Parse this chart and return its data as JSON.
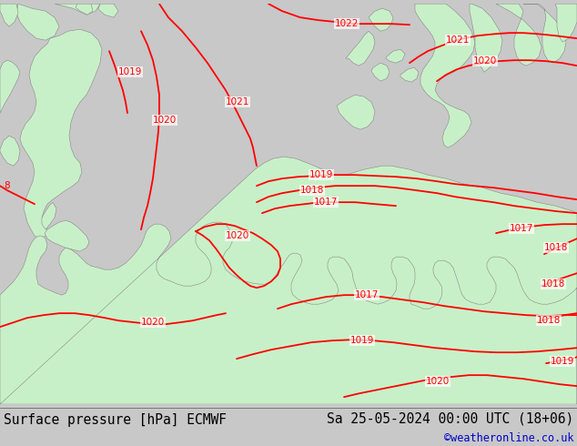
{
  "title_left": "Surface pressure [hPa] ECMWF",
  "title_right": "Sa 25-05-2024 00:00 UTC (18+06)",
  "credit": "©weatheronline.co.uk",
  "title_fontsize": 10.5,
  "credit_fontsize": 8.5,
  "bg_color": "#c8c8c8",
  "land_green": "#c8f0c8",
  "sea_color": "#dcdcdc",
  "contour_color": "#ff0000",
  "contour_linewidth": 1.3,
  "label_fontsize": 7.5,
  "figsize": [
    6.34,
    4.9
  ],
  "dpi": 100
}
